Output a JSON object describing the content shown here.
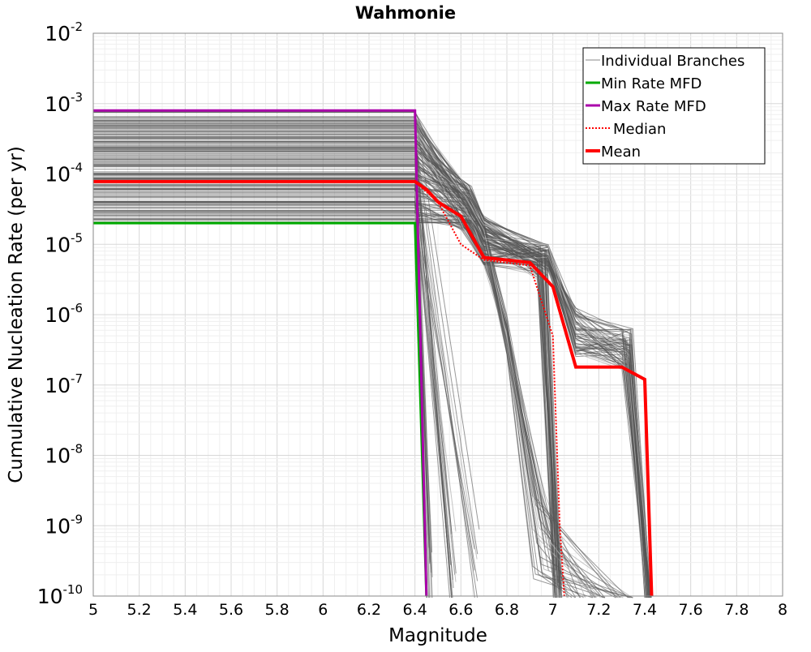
{
  "chart_data": {
    "type": "line",
    "title": "Wahmonie",
    "xlabel": "Magnitude",
    "ylabel": "Cumulative Nucleation Rate (per yr)",
    "xlim": [
      5,
      8
    ],
    "ylim": [
      1e-10,
      0.01
    ],
    "y_scale": "log",
    "grid": true,
    "legend_position": "top-right",
    "x_ticks": [
      "5",
      "5.2",
      "5.4",
      "5.6",
      "5.8",
      "6",
      "6.2",
      "6.4",
      "6.6",
      "6.8",
      "7",
      "7.2",
      "7.4",
      "7.6",
      "7.8",
      "8"
    ],
    "y_tick_base": "10",
    "y_tick_exponents": [
      "-10",
      "-9",
      "-8",
      "-7",
      "-6",
      "-5",
      "-4",
      "-3",
      "-2"
    ],
    "colors": {
      "branches": "#555555",
      "min_rate": "#00aa00",
      "max_rate": "#aa00aa",
      "median": "#ff0000",
      "mean": "#ff0000"
    },
    "legend": [
      "Individual Branches",
      "Min Rate MFD",
      "Max Rate MFD",
      "Median",
      "Mean"
    ],
    "series": [
      {
        "name": "Max Rate MFD",
        "x": [
          5.0,
          6.4,
          6.45
        ],
        "y": [
          0.0008,
          0.0008,
          1e-10
        ]
      },
      {
        "name": "Min Rate MFD",
        "x": [
          5.0,
          6.4,
          6.45
        ],
        "y": [
          2e-05,
          2e-05,
          1e-10
        ]
      },
      {
        "name": "Median",
        "x": [
          5.0,
          6.4,
          6.5,
          6.6,
          6.7,
          6.9,
          7.0,
          7.03,
          7.05
        ],
        "y": [
          7.8e-05,
          7.8e-05,
          4e-05,
          1e-05,
          6e-06,
          5e-06,
          5e-07,
          1e-09,
          1e-10
        ]
      },
      {
        "name": "Mean",
        "x": [
          5.0,
          6.4,
          6.45,
          6.5,
          6.6,
          6.7,
          6.9,
          7.0,
          7.1,
          7.3,
          7.4,
          7.43
        ],
        "y": [
          7.8e-05,
          7.8e-05,
          6e-05,
          4e-05,
          2.5e-05,
          6.5e-06,
          5.5e-06,
          2.5e-06,
          1.8e-07,
          1.8e-07,
          1.2e-07,
          1e-10
        ]
      }
    ]
  }
}
